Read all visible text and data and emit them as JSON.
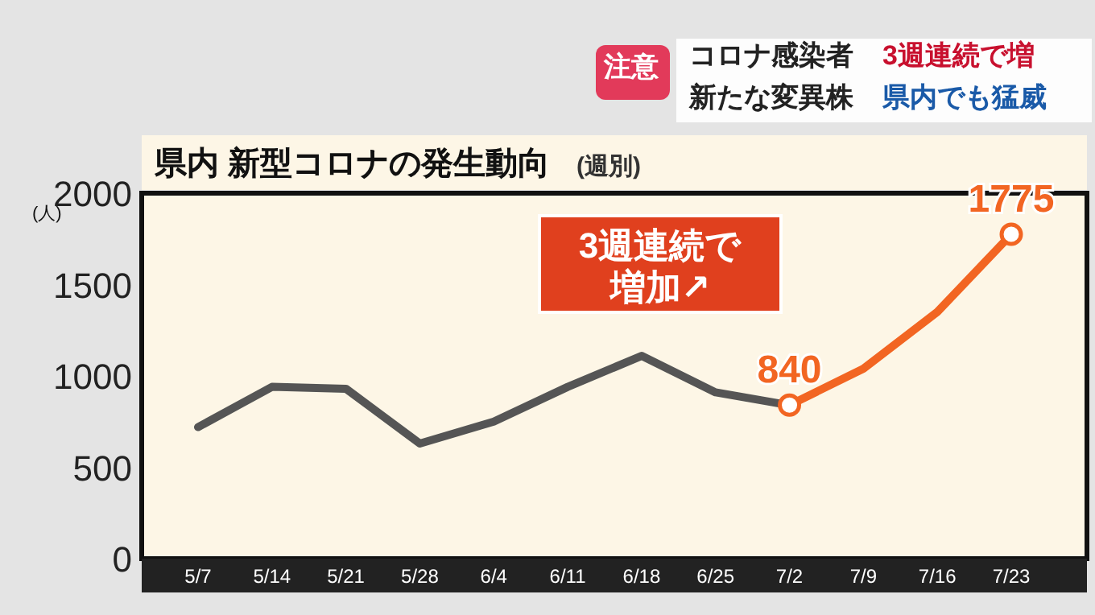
{
  "chart_data": {
    "type": "line",
    "title": "県内 新型コロナの発生動向",
    "subtitle": "(週別)",
    "ylabel": "(人)",
    "categories": [
      "5/7",
      "5/14",
      "5/21",
      "5/28",
      "6/4",
      "6/11",
      "6/18",
      "6/25",
      "7/2",
      "7/9",
      "7/16",
      "7/23"
    ],
    "series": [
      {
        "color": "#555555",
        "values": [
          720,
          940,
          930,
          630,
          750,
          940,
          1110,
          910,
          840,
          null,
          null,
          null
        ]
      },
      {
        "color": "#f26522",
        "values": [
          null,
          null,
          null,
          null,
          null,
          null,
          null,
          null,
          840,
          1040,
          1350,
          1775
        ]
      },
      {
        "type": "scatter",
        "color": "#f26522",
        "values": [
          null,
          null,
          null,
          null,
          null,
          null,
          null,
          null,
          840,
          null,
          null,
          1775
        ],
        "value_labels": [
          null,
          null,
          null,
          null,
          null,
          null,
          null,
          null,
          "840",
          null,
          null,
          "1775"
        ]
      }
    ],
    "ylim": [
      0,
      2000
    ],
    "yticks": [
      0,
      500,
      1000,
      1500,
      2000
    ],
    "grid": false,
    "annotations": [
      "注意",
      "コロナ感染者",
      "3週連続で増",
      "新たな変異株",
      "県内でも猛威",
      "3週連続で",
      "増加↗"
    ]
  }
}
